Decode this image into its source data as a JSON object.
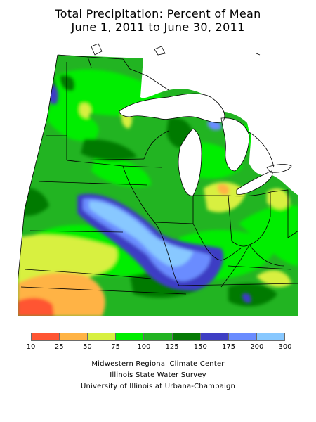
{
  "title": {
    "line1": "Total Precipitation: Percent of Mean",
    "line2": "June 1, 2011 to June 30, 2011"
  },
  "legend": {
    "ticks": [
      "10",
      "25",
      "50",
      "75",
      "100",
      "125",
      "150",
      "175",
      "200",
      "300"
    ],
    "colors": [
      "#ff5533",
      "#ffb345",
      "#d8f040",
      "#00ee00",
      "#22b422",
      "#057a05",
      "#3e3ec4",
      "#6a8cff",
      "#88c8ff"
    ]
  },
  "credits": [
    "Midwestern Regional Climate Center",
    "Illinois State Water Survey",
    "University of Illinois at Urbana-Champaign"
  ]
}
